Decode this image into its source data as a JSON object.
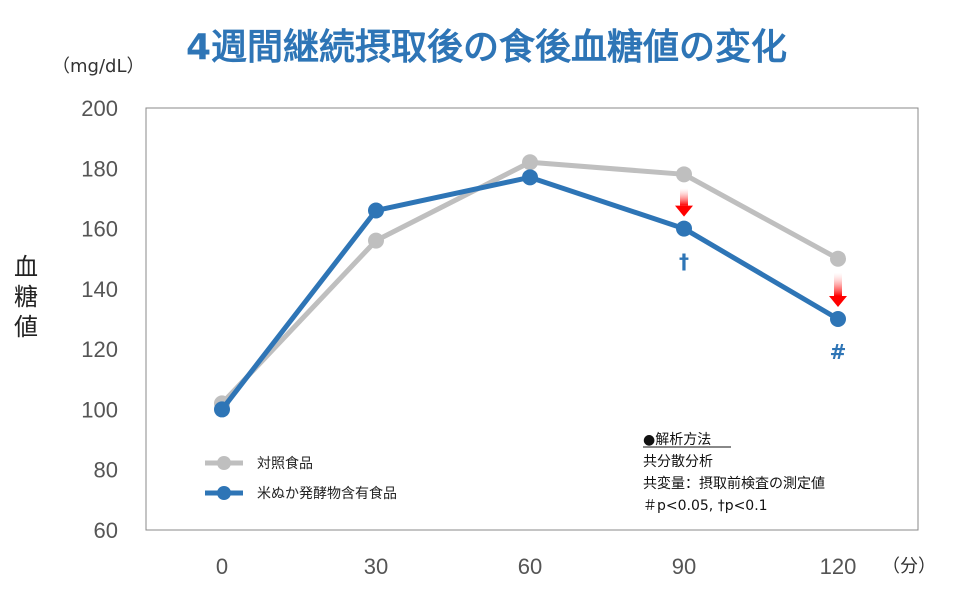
{
  "chart_data": {
    "type": "line",
    "title": "4週間継続摂取後の食後血糖値の変化",
    "y_unit": "（mg/dL）",
    "x_unit": "（分）",
    "ylabel": "血糖値",
    "x": [
      0,
      30,
      60,
      90,
      120
    ],
    "ylim": [
      60,
      200
    ],
    "yticks": [
      60,
      80,
      100,
      120,
      140,
      160,
      180,
      200
    ],
    "grid": false,
    "legend_position": "bottom-left",
    "series": [
      {
        "name": "対照食品",
        "color": "#bfbfbf",
        "values": [
          102,
          156,
          182,
          178,
          150
        ]
      },
      {
        "name": "米ぬか発酵物含有食品",
        "color": "#2e75b6",
        "values": [
          100,
          166,
          177,
          160,
          130
        ]
      }
    ],
    "significance_marks": [
      {
        "x": 90,
        "symbol": "†"
      },
      {
        "x": 120,
        "symbol": "#"
      }
    ],
    "arrow_color": "#ff0000",
    "analysis_note": {
      "heading": "●解析方法",
      "lines": [
        "共分散分析",
        "共変量：摂取前検査の測定値",
        "＃p<0.05, †p<0.1"
      ]
    }
  }
}
